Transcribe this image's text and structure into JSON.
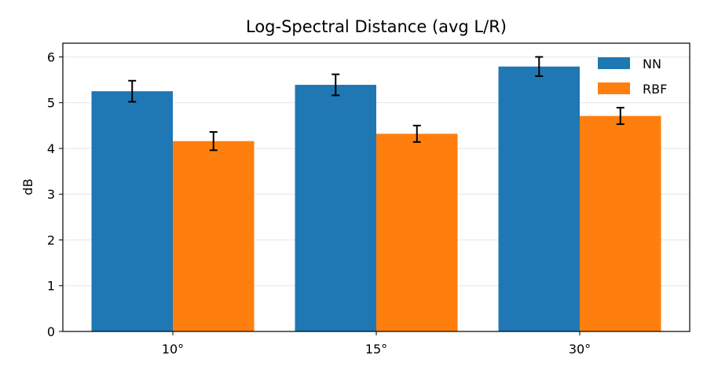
{
  "chart_data": {
    "type": "bar",
    "title": "Log-Spectral Distance (avg L/R)",
    "xlabel": "",
    "ylabel": "dB",
    "categories": [
      "10°",
      "15°",
      "30°"
    ],
    "series": [
      {
        "name": "NN",
        "color": "#1f77b4",
        "values": [
          5.25,
          5.39,
          5.79
        ],
        "errors": [
          0.23,
          0.23,
          0.21
        ]
      },
      {
        "name": "RBF",
        "color": "#ff7f0e",
        "values": [
          4.16,
          4.32,
          4.71
        ],
        "errors": [
          0.2,
          0.18,
          0.18
        ]
      }
    ],
    "ylim": [
      0,
      6.3
    ],
    "yticks": [
      0,
      1,
      2,
      3,
      4,
      5,
      6
    ],
    "grid": "y",
    "legend_position": "top-right"
  }
}
